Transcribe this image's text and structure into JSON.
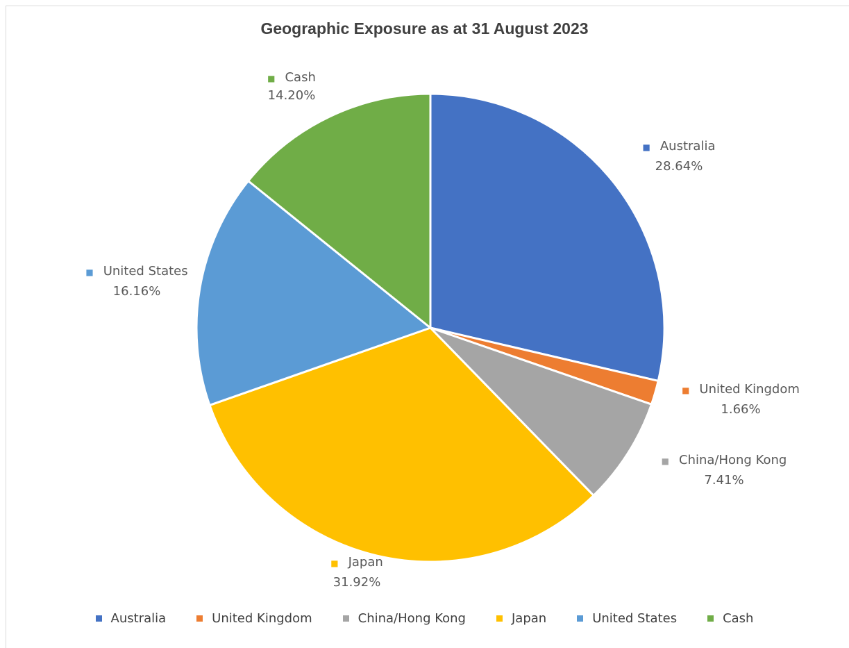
{
  "chart_data": {
    "type": "pie",
    "title": "Geographic Exposure as at 31 August 2023",
    "slices": [
      {
        "label": "Australia",
        "value": 28.64,
        "value_label": "28.64%",
        "color": "#4472C4"
      },
      {
        "label": "United Kingdom",
        "value": 1.66,
        "value_label": "1.66%",
        "color": "#ED7D31"
      },
      {
        "label": "China/Hong Kong",
        "value": 7.41,
        "value_label": "7.41%",
        "color": "#A5A5A5"
      },
      {
        "label": "Japan",
        "value": 31.92,
        "value_label": "31.92%",
        "color": "#FFC000"
      },
      {
        "label": "United States",
        "value": 16.16,
        "value_label": "16.16%",
        "color": "#5B9BD5"
      },
      {
        "label": "Cash",
        "value": 14.2,
        "value_label": "14.20%",
        "color": "#70AD47"
      }
    ],
    "legend_position": "bottom",
    "start_angle": "12 o'clock",
    "direction": "clockwise"
  }
}
